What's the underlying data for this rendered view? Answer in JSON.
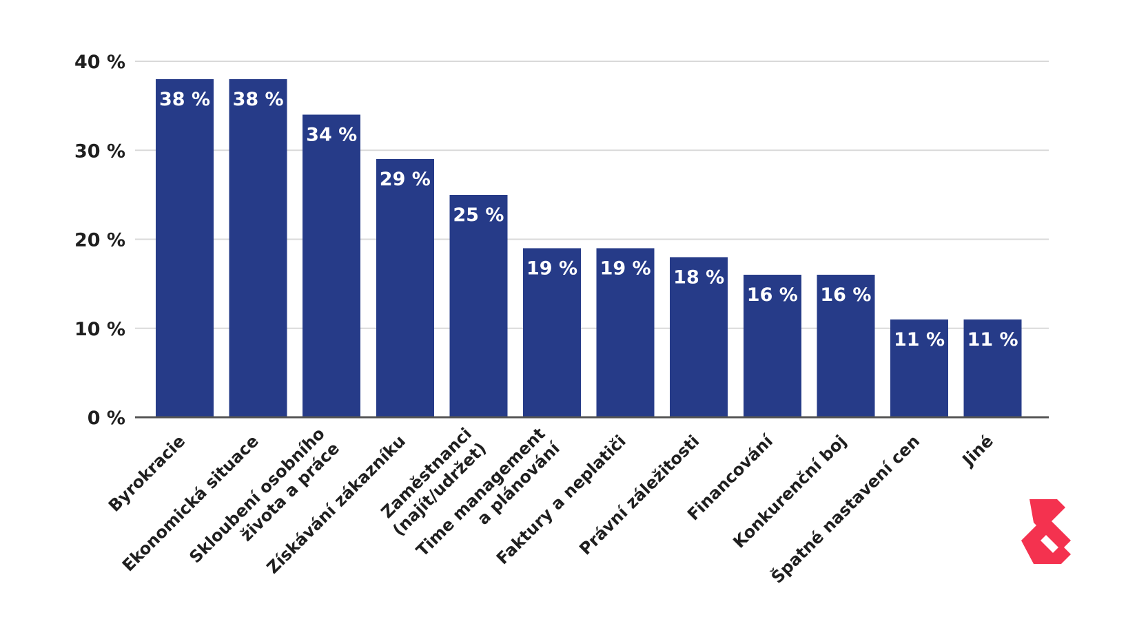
{
  "chart_data": {
    "type": "bar",
    "title": "",
    "xlabel": "",
    "ylabel": "",
    "categories": [
      "Byrokracie",
      "Ekonomická situace",
      "Skloubení osobního\nživota a práce",
      "Získávání zákazníku",
      "Zaměstnanci\n(najít/udržet)",
      "Time management\na plánování",
      "Faktury a neplatiči",
      "Právní záležitosti",
      "Financování",
      "Konkurenční boj",
      "Špatné nastavení cen",
      "Jiné"
    ],
    "values": [
      38,
      38,
      34,
      29,
      25,
      19,
      19,
      18,
      16,
      16,
      11,
      11
    ],
    "value_labels": [
      "38 %",
      "38 %",
      "34 %",
      "29 %",
      "25 %",
      "19 %",
      "19 %",
      "18 %",
      "16 %",
      "16 %",
      "11 %",
      "11 %"
    ],
    "yticks": [
      0,
      10,
      20,
      30,
      40
    ],
    "ytick_labels": [
      "0 %",
      "10 %",
      "20 %",
      "30 %",
      "40 %"
    ],
    "ylim": [
      0,
      40
    ],
    "grid": true,
    "legend": "none",
    "colors": {
      "bar": "#263b88",
      "label": "#ffffff",
      "grid": "#d9d9d9",
      "axis": "#555555",
      "logo": "#f4324f"
    }
  },
  "logo": {
    "icon": "brand-s-logo-icon",
    "color": "#f4324f"
  }
}
